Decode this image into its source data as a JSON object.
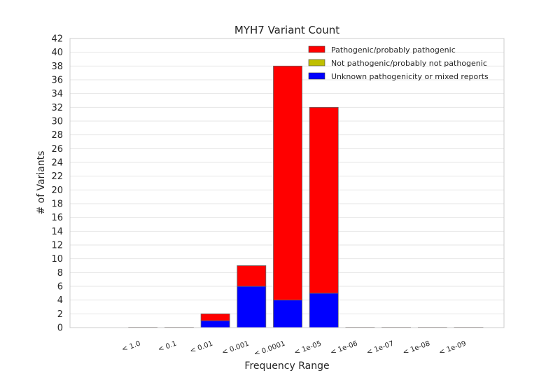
{
  "chart_data": {
    "type": "bar",
    "stacked": true,
    "title": "MYH7 Variant Count",
    "xlabel": "Frequency Range",
    "ylabel": "# of Variants",
    "ylim": [
      0,
      42
    ],
    "yticks": [
      0,
      2,
      4,
      6,
      8,
      10,
      12,
      14,
      16,
      18,
      20,
      22,
      24,
      26,
      28,
      30,
      32,
      34,
      36,
      38,
      40,
      42
    ],
    "grid": true,
    "legend_position": "top-right",
    "categories": [
      "< 1.0",
      "< 0.1",
      "< 0.01",
      "< 0.001",
      "< 0.0001",
      "< 1e-05",
      "< 1e-06",
      "< 1e-07",
      "< 1e-08",
      "< 1e-09"
    ],
    "series": [
      {
        "name": "Unknown pathogenicity or mixed reports",
        "color": "#0000ff",
        "values": [
          0,
          0,
          1,
          6,
          4,
          5,
          0,
          0,
          0,
          0
        ]
      },
      {
        "name": "Not pathogenic/probably not pathogenic",
        "color": "#bfbf00",
        "values": [
          0,
          0,
          0,
          0,
          0,
          0,
          0,
          0,
          0,
          0
        ]
      },
      {
        "name": "Pathogenic/probably pathogenic",
        "color": "#ff0000",
        "values": [
          0,
          0,
          1,
          3,
          34,
          27,
          0,
          0,
          0,
          0
        ]
      }
    ],
    "legend_order": [
      "Pathogenic/probably pathogenic",
      "Not pathogenic/probably not pathogenic",
      "Unknown pathogenicity or mixed reports"
    ]
  }
}
